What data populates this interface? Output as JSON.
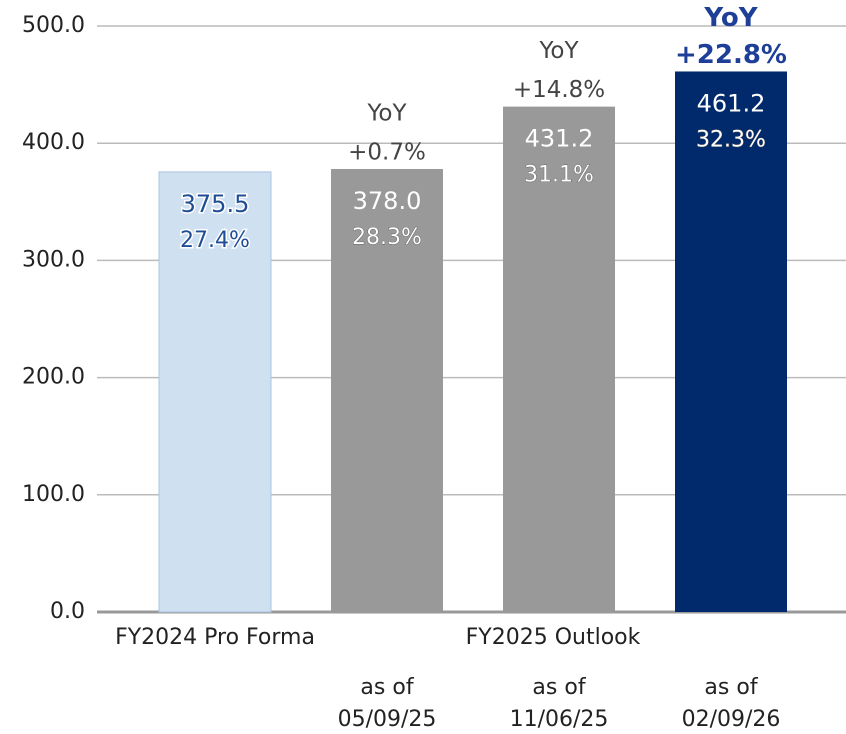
{
  "chart_data": {
    "type": "bar",
    "categories": [
      [
        "FY2024 Pro Forma"
      ],
      [
        "as of",
        "05/09/25"
      ],
      [
        "as of",
        "11/06/25"
      ],
      [
        "as of",
        "02/09/26"
      ]
    ],
    "group_label": "FY2025 Outlook",
    "values": [
      375.5,
      378.0,
      431.2,
      461.2
    ],
    "value_labels": [
      "375.5",
      "378.0",
      "431.2",
      "461.2"
    ],
    "margin_labels": [
      "27.4%",
      "28.3%",
      "31.1%",
      "32.3%"
    ],
    "yoy_labels": [
      null,
      [
        "YoY",
        "+0.7%"
      ],
      [
        "YoY",
        "+14.8%"
      ],
      [
        "YoY",
        "+22.8%"
      ]
    ],
    "colors": [
      "#cfe0f1",
      "#999999",
      "#999999",
      "#002a6c"
    ],
    "ylim": [
      0,
      500
    ],
    "yticks": [
      {
        "value": 0,
        "label": "0.0"
      },
      {
        "value": 100,
        "label": "100.0"
      },
      {
        "value": 200,
        "label": "200.0"
      },
      {
        "value": 300,
        "label": "300.0"
      },
      {
        "value": 400,
        "label": "400.0"
      },
      {
        "value": 500,
        "label": "500.0"
      }
    ],
    "grid": true
  }
}
